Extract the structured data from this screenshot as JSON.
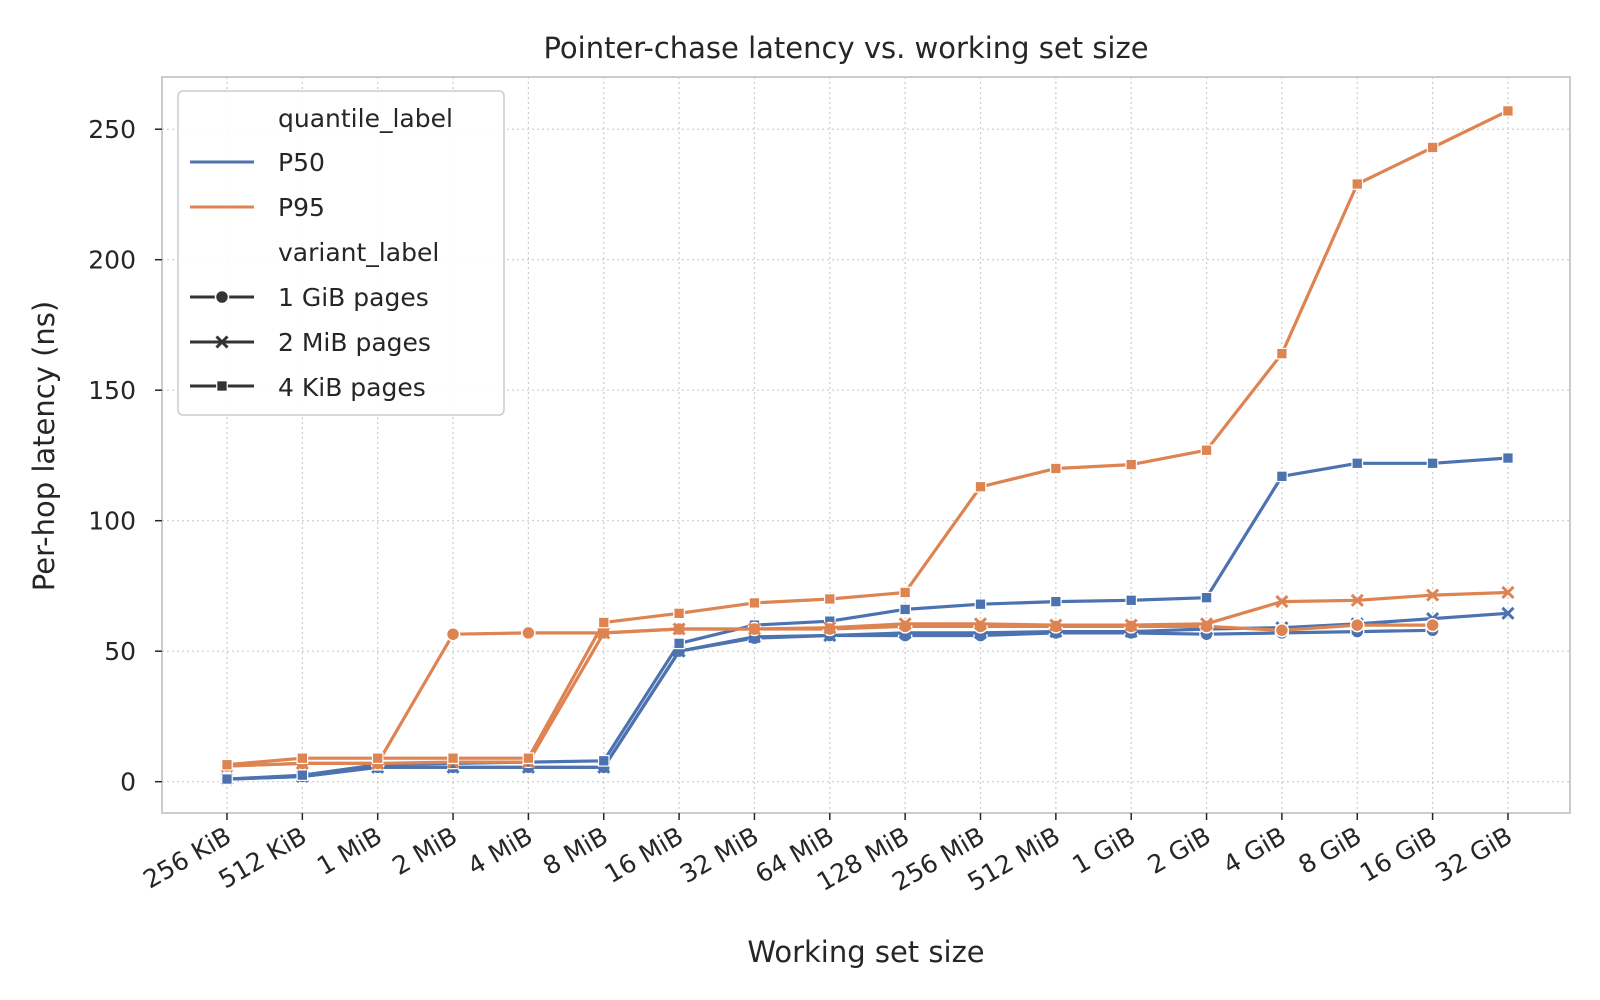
{
  "chart_data": {
    "type": "line",
    "title": "Pointer-chase latency vs. working set size",
    "xlabel": "Working set size",
    "ylabel": "Per-hop latency (ns)",
    "categories": [
      "256 KiB",
      "512 KiB",
      "1 MiB",
      "2 MiB",
      "4 MiB",
      "8 MiB",
      "16 MiB",
      "32 MiB",
      "64 MiB",
      "128 MiB",
      "256 MiB",
      "512 MiB",
      "1 GiB",
      "2 GiB",
      "4 GiB",
      "8 GiB",
      "16 GiB",
      "32 GiB"
    ],
    "ylim": [
      -12,
      270
    ],
    "yticks": [
      0,
      50,
      100,
      150,
      200,
      250
    ],
    "grid": true,
    "legend_position": "top-left",
    "colors": {
      "P50": "#4c72b0",
      "P95": "#dd8452"
    },
    "legend": {
      "hue_title": "quantile_label",
      "hue_items": [
        "P50",
        "P95"
      ],
      "style_title": "variant_label",
      "style_items": [
        "1 GiB pages",
        "2 MiB pages",
        "4 KiB pages"
      ]
    },
    "series": [
      {
        "quantile": "P50",
        "variant": "1 GiB pages",
        "marker": "circle",
        "values": [
          1,
          2,
          5.5,
          5.5,
          5.5,
          5.5,
          50,
          55,
          56,
          56,
          56,
          57,
          57,
          56.5,
          57,
          57.5,
          58,
          null
        ]
      },
      {
        "quantile": "P50",
        "variant": "2 MiB pages",
        "marker": "x",
        "values": [
          1,
          2,
          5.5,
          5.5,
          5.5,
          5.5,
          50,
          55.5,
          56,
          57,
          57,
          57.5,
          57.5,
          58.5,
          59,
          60.5,
          62.5,
          64.5
        ]
      },
      {
        "quantile": "P50",
        "variant": "4 KiB pages",
        "marker": "square",
        "values": [
          1,
          2.5,
          6.5,
          7,
          7.5,
          8,
          53,
          60,
          61.5,
          66,
          68,
          69,
          69.5,
          70.5,
          117,
          122,
          122,
          124
        ]
      },
      {
        "quantile": "P95",
        "variant": "1 GiB pages",
        "marker": "circle",
        "values": [
          6,
          7,
          7,
          56.5,
          57,
          57,
          58.5,
          58.5,
          58.5,
          59.5,
          59.5,
          59.5,
          59.5,
          59.5,
          58,
          60,
          60,
          null
        ]
      },
      {
        "quantile": "P95",
        "variant": "2 MiB pages",
        "marker": "x",
        "values": [
          6,
          7,
          7,
          7.5,
          7.5,
          57,
          58.5,
          58.5,
          59,
          60.5,
          60.5,
          60,
          60,
          60.5,
          69,
          69.5,
          71.5,
          72.5
        ]
      },
      {
        "quantile": "P95",
        "variant": "4 KiB pages",
        "marker": "square",
        "values": [
          6.5,
          9,
          9,
          9,
          9,
          61,
          64.5,
          68.5,
          70,
          72.5,
          113,
          120,
          121.5,
          127,
          164,
          229,
          243,
          257
        ]
      }
    ]
  }
}
